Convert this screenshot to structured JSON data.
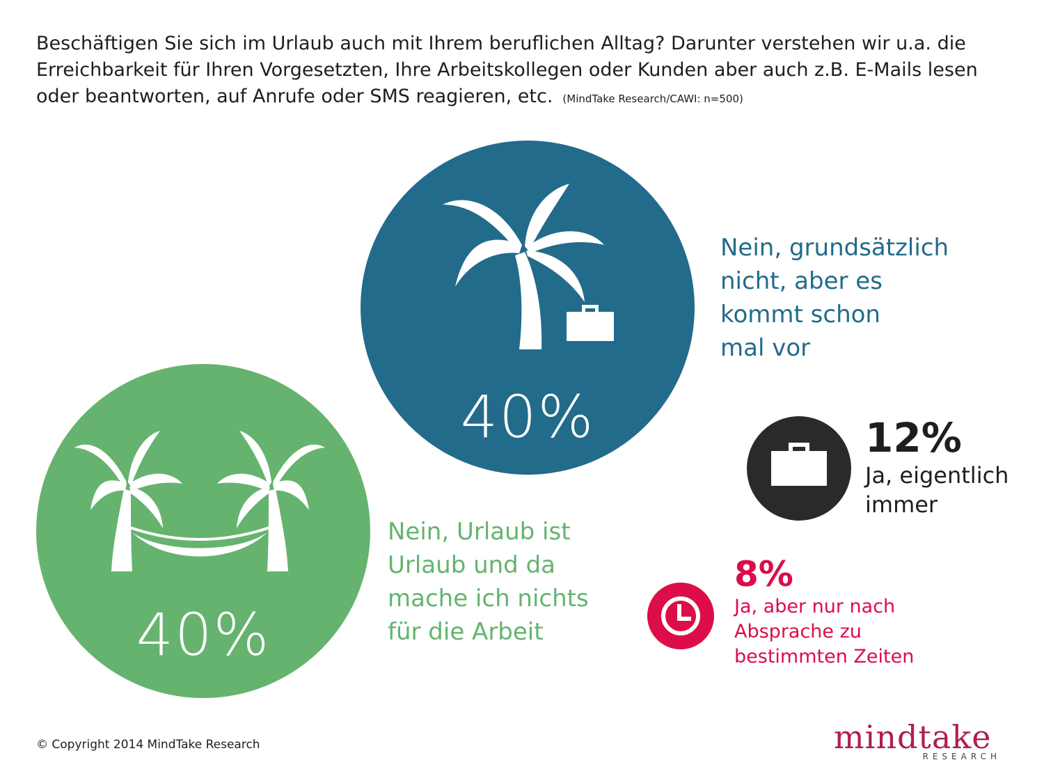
{
  "question": {
    "text": "Beschäftigen Sie sich im Urlaub auch mit Ihrem beruflichen Alltag? Darunter verstehen wir u.a. die Erreichbarkeit für Ihren Vorgesetzten, Ihre Arbeitskollegen oder Kunden aber auch z.B. E-Mails lesen oder beantworten, auf Anrufe oder SMS reagieren, etc.",
    "source": "(MindTake Research/CAWI: n=500)"
  },
  "chart_data": {
    "type": "pie",
    "categories": [
      "Nein, grundsätzlich nicht, aber es kommt schon mal vor",
      "Nein, Urlaub ist Urlaub und da mache ich nichts für die Arbeit",
      "Ja, eigentlich immer",
      "Ja, aber nur nach Absprache zu bestimmten Zeiten"
    ],
    "values": [
      40,
      40,
      12,
      8
    ],
    "unit": "%",
    "value_labels": [
      "40%",
      "40%",
      "12%",
      "8%"
    ],
    "colors": [
      "#226b8b",
      "#65b36e",
      "#2a2a2a",
      "#dc0d48"
    ],
    "icons": [
      "palm-tree-with-briefcase-icon",
      "hammock-palms-icon",
      "briefcase-icon",
      "clock-icon"
    ]
  },
  "labels": {
    "blue": [
      "Nein, grundsätzlich",
      "nicht, aber es",
      "kommt schon",
      "mal vor"
    ],
    "green": [
      "Nein, Urlaub ist",
      "Urlaub und da",
      "mache ich nichts",
      "für die Arbeit"
    ],
    "black": [
      "Ja, eigentlich",
      "immer"
    ],
    "red": [
      "Ja, aber nur nach",
      "Absprache zu",
      "bestimmten Zeiten"
    ]
  },
  "footer": {
    "copyright": "© Copyright 2014 MindTake Research",
    "logo_word": "mindtake",
    "logo_sub": "RESEARCH"
  }
}
